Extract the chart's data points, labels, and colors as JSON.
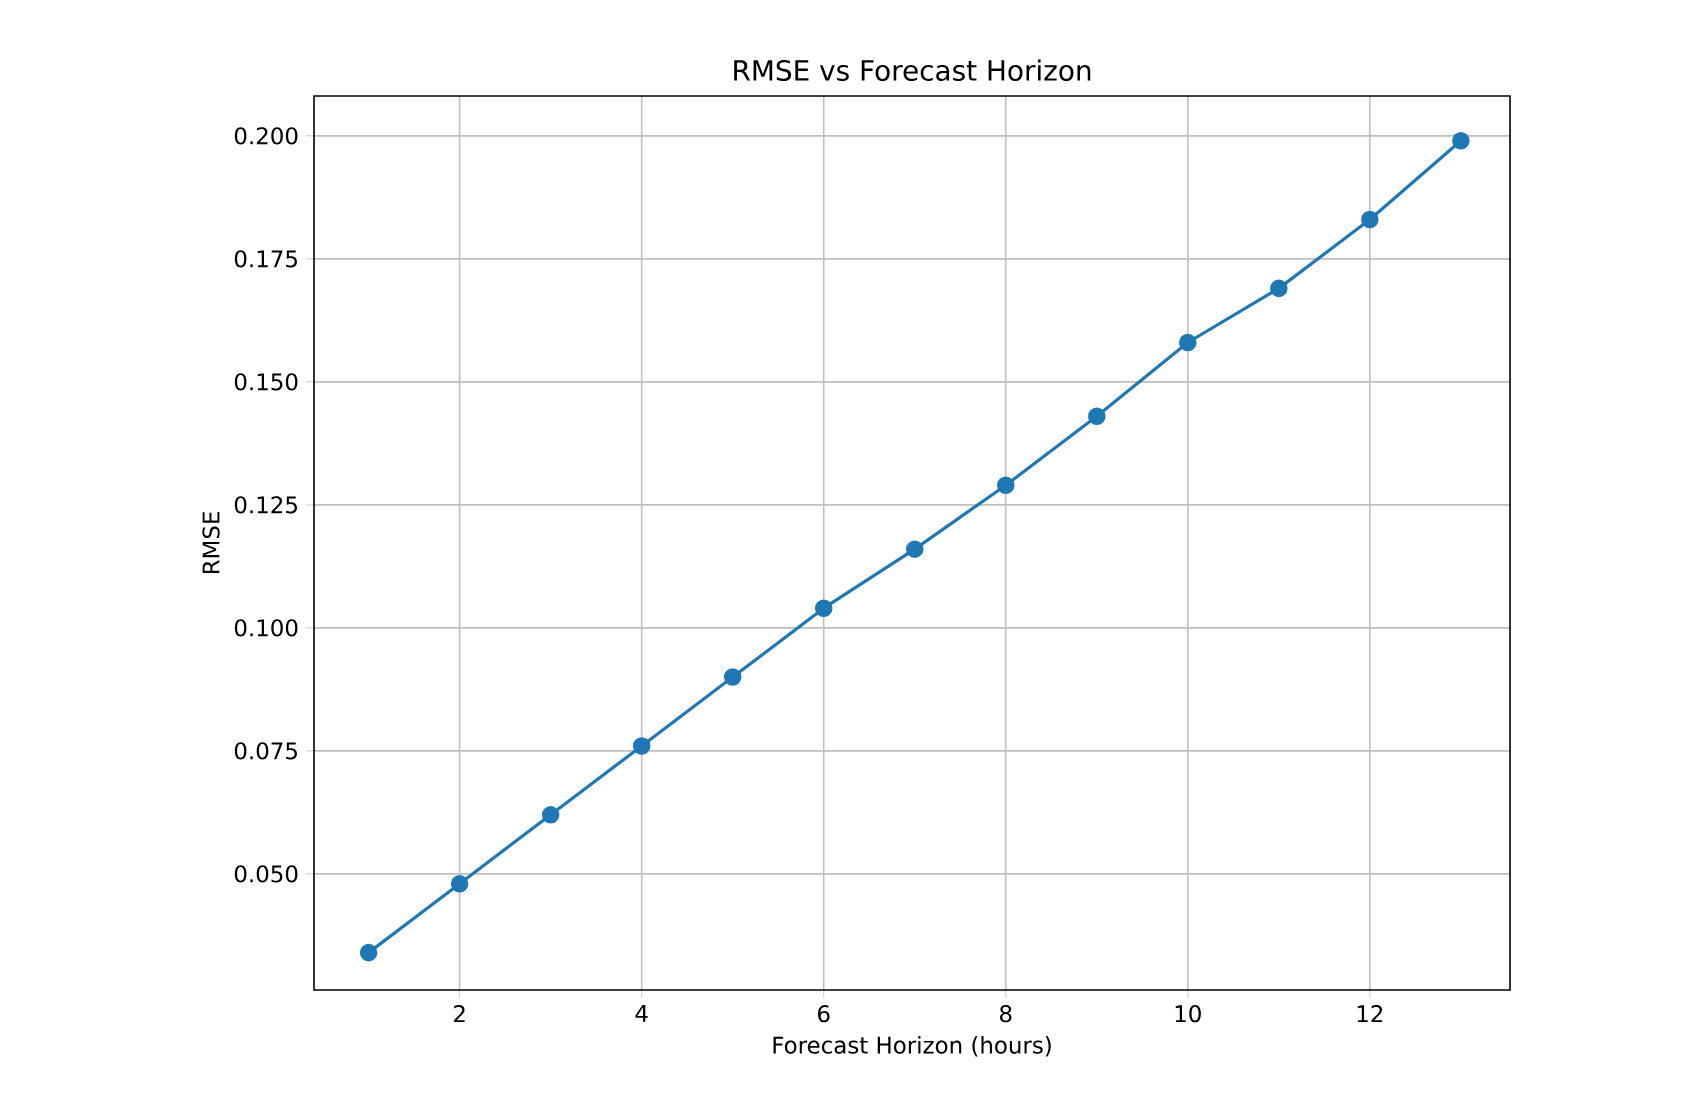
{
  "chart_data": {
    "type": "line",
    "title": "RMSE vs Forecast Horizon",
    "xlabel": "Forecast Horizon (hours)",
    "ylabel": "RMSE",
    "x": [
      1,
      2,
      3,
      4,
      5,
      6,
      7,
      8,
      9,
      10,
      11,
      12,
      13
    ],
    "series": [
      {
        "color": "#1f77b4",
        "values": [
          0.034,
          0.048,
          0.062,
          0.076,
          0.09,
          0.104,
          0.116,
          0.129,
          0.143,
          0.158,
          0.169,
          0.183,
          0.199
        ]
      }
    ],
    "xlim": [
      0.4,
      13.54
    ],
    "ylim": [
      0.0264,
      0.2081
    ],
    "xticks": [
      2,
      4,
      6,
      8,
      10,
      12
    ],
    "yticks": [
      {
        "value": 0.05,
        "label": "0.050"
      },
      {
        "value": 0.075,
        "label": "0.075"
      },
      {
        "value": 0.1,
        "label": "0.100"
      },
      {
        "value": 0.125,
        "label": "0.125"
      },
      {
        "value": 0.15,
        "label": "0.150"
      },
      {
        "value": 0.175,
        "label": "0.175"
      },
      {
        "value": 0.2,
        "label": "0.200"
      }
    ],
    "grid": true,
    "marker": "circle",
    "line_style": "solid"
  }
}
